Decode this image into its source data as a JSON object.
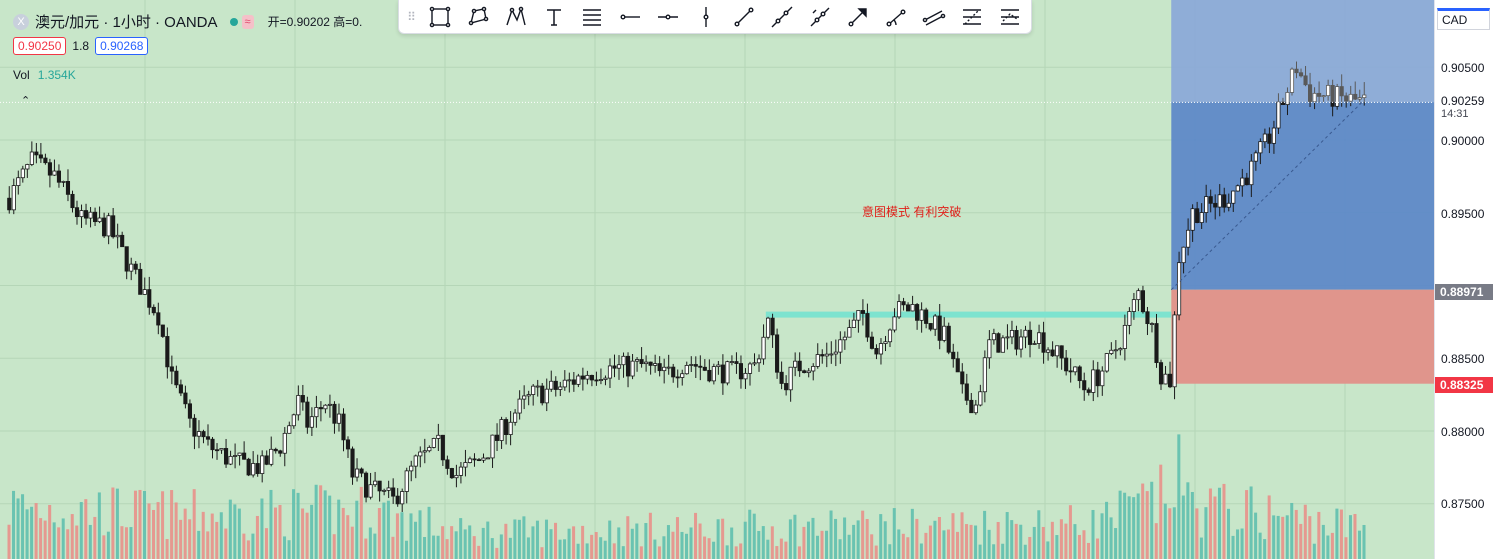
{
  "header": {
    "symbol_logo": "X",
    "symbol_title": "澳元/加元 · 1小时 · OANDA",
    "approx_icon": "≈",
    "ohlc_text": "开=0.90202  高=0."
  },
  "quote": {
    "sell": "0.90250",
    "spread": "1.8",
    "buy": "0.90268"
  },
  "volume": {
    "label": "Vol",
    "value": "1.354K"
  },
  "toolbar": {
    "icons": [
      "rectangle-tool-icon",
      "polygon-tool-icon",
      "path-tool-icon",
      "text-tool-icon",
      "fib-lines-tool-icon",
      "ray-tool-icon",
      "horizontal-ray-tool-icon",
      "vertical-line-tool-icon",
      "trend-line-tool-icon",
      "extended-line-tool-icon",
      "info-line-tool-icon",
      "arrow-tool-icon",
      "trend-angle-tool-icon",
      "parallel-channel-tool-icon",
      "fib-retracement-tool-icon",
      "fib-extension-tool-icon"
    ]
  },
  "axis": {
    "currency": "CAD",
    "ticks": [
      "0.90500",
      "0.90000",
      "0.89500",
      "0.88500",
      "0.88000",
      "0.87500"
    ]
  },
  "last_price": {
    "value": "0.90259",
    "countdown": "14:31"
  },
  "position": {
    "entry": "0.88971",
    "stop": "0.88325"
  },
  "annotation": "意图模式  有利突破",
  "colors": {
    "background": "#c8e6c9",
    "candle": "#1a1a1a",
    "vol_up": "#5fbfae",
    "vol_down": "#e8908a",
    "target_zone": "#5b87c8",
    "stop_zone": "#e0958c",
    "resistance": "#7de3cf",
    "entry_tag": "#787b86",
    "stop_tag": "#f23645"
  },
  "chart_data": {
    "type": "candlestick",
    "timeframe": "1小时",
    "ylim": [
      0.8735,
      0.9083
    ],
    "path": [
      [
        0,
        0.896
      ],
      [
        5,
        0.8985
      ],
      [
        10,
        0.8975
      ],
      [
        16,
        0.8945
      ],
      [
        22,
        0.894
      ],
      [
        28,
        0.8905
      ],
      [
        33,
        0.888
      ],
      [
        36,
        0.8835
      ],
      [
        40,
        0.8805
      ],
      [
        44,
        0.879
      ],
      [
        50,
        0.8778
      ],
      [
        56,
        0.8775
      ],
      [
        60,
        0.879
      ],
      [
        64,
        0.882
      ],
      [
        66,
        0.8805
      ],
      [
        70,
        0.882
      ],
      [
        73,
        0.8805
      ],
      [
        76,
        0.877
      ],
      [
        80,
        0.876
      ],
      [
        85,
        0.8752
      ],
      [
        90,
        0.8778
      ],
      [
        95,
        0.879
      ],
      [
        99,
        0.877
      ],
      [
        104,
        0.878
      ],
      [
        108,
        0.8795
      ],
      [
        111,
        0.881
      ],
      [
        116,
        0.8825
      ],
      [
        122,
        0.883
      ],
      [
        128,
        0.884
      ],
      [
        133,
        0.8843
      ],
      [
        140,
        0.8845
      ],
      [
        145,
        0.8838
      ],
      [
        150,
        0.8848
      ],
      [
        155,
        0.8842
      ],
      [
        160,
        0.884
      ],
      [
        165,
        0.8845
      ],
      [
        168,
        0.8875
      ],
      [
        171,
        0.8832
      ],
      [
        175,
        0.8845
      ],
      [
        181,
        0.8852
      ],
      [
        186,
        0.8868
      ],
      [
        189,
        0.888
      ],
      [
        192,
        0.8855
      ],
      [
        196,
        0.8882
      ],
      [
        200,
        0.8885
      ],
      [
        203,
        0.8878
      ],
      [
        207,
        0.8865
      ],
      [
        211,
        0.8825
      ],
      [
        214,
        0.8818
      ],
      [
        217,
        0.886
      ],
      [
        222,
        0.8862
      ],
      [
        227,
        0.8868
      ],
      [
        231,
        0.8855
      ],
      [
        235,
        0.8842
      ],
      [
        238,
        0.883
      ],
      [
        241,
        0.8838
      ],
      [
        244,
        0.885
      ],
      [
        247,
        0.887
      ],
      [
        250,
        0.8895
      ],
      [
        253,
        0.887
      ],
      [
        255,
        0.884
      ],
      [
        257,
        0.8835
      ],
      [
        259,
        0.892
      ],
      [
        262,
        0.895
      ],
      [
        266,
        0.8955
      ],
      [
        270,
        0.8962
      ],
      [
        275,
        0.898
      ],
      [
        279,
        0.9002
      ],
      [
        283,
        0.9035
      ],
      [
        285,
        0.905
      ],
      [
        288,
        0.9032
      ],
      [
        292,
        0.903
      ],
      [
        296,
        0.9028
      ],
      [
        300,
        0.9026
      ]
    ],
    "volume_profile": [
      [
        0,
        0.6
      ],
      [
        40,
        0.5
      ],
      [
        80,
        0.55
      ],
      [
        100,
        0.3
      ],
      [
        160,
        0.35
      ],
      [
        240,
        0.4
      ],
      [
        256,
        0.7
      ],
      [
        258,
        1.0
      ],
      [
        262,
        0.6
      ],
      [
        280,
        0.5
      ],
      [
        300,
        0.35
      ]
    ],
    "resistance_level": 0.888,
    "position": {
      "entry": 0.88971,
      "take_profit": 0.9083,
      "stop": 0.88325
    },
    "annotation": "意图模式  有利突破",
    "axis_ticks": [
      0.905,
      0.9,
      0.895,
      0.885,
      0.88,
      0.875
    ]
  }
}
